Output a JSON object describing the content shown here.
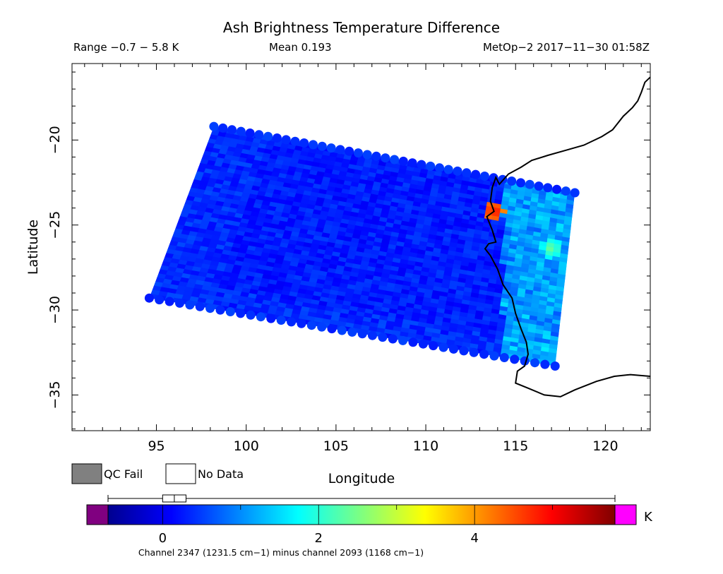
{
  "chart_data": {
    "type": "heatmap",
    "title": "Ash Brightness Temperature Difference",
    "subtitle_left": "Range −0.7 − 5.8 K",
    "subtitle_mid": "Mean 0.193",
    "subtitle_right": "MetOp−2 2017−11−30 01:58Z",
    "xlabel": "Longitude",
    "ylabel": "Latitude",
    "xlim": [
      90.3,
      122.5
    ],
    "ylim": [
      -37.1,
      -15.5
    ],
    "xticks": [
      95,
      100,
      105,
      110,
      115,
      120
    ],
    "xtick_labels": [
      "95",
      "100",
      "105",
      "110",
      "115",
      "120"
    ],
    "yticks": [
      -20,
      -25,
      -30,
      -35
    ],
    "ytick_labels": [
      "−20",
      "−25",
      "−30",
      "−35"
    ],
    "swath_corners": [
      [
        98.2,
        -19.2
      ],
      [
        118.3,
        -23.1
      ],
      [
        117.2,
        -33.3
      ],
      [
        94.6,
        -29.3
      ]
    ],
    "field_summary": {
      "range": [
        -0.7,
        5.8
      ],
      "mean": 0.193,
      "units": "K"
    },
    "hotspots": [
      {
        "lon": 113.8,
        "lat": -24.2,
        "value": 5.0
      },
      {
        "lon": 116.5,
        "lat": -24.6,
        "value": 1.8
      },
      {
        "lon": 117.0,
        "lat": -26.4,
        "value": 2.5
      }
    ],
    "grid": false
  },
  "colorbar": {
    "range": [
      -0.7,
      5.8
    ],
    "ticks": [
      0,
      2,
      4
    ],
    "tick_labels": [
      "0",
      "2",
      "4"
    ],
    "unit": "K",
    "box": {
      "q1": 0.0,
      "median": 0.15,
      "q3": 0.3,
      "min": -0.7,
      "max": 5.8
    },
    "caption": "Channel 2347 (1231.5 cm−1) minus channel 2093 (1168 cm−1)",
    "under_color": "#800080",
    "over_color": "#ff00ff"
  },
  "legend": {
    "qc_fail_label": "QC Fail",
    "qc_fail_color": "#808080",
    "no_data_label": "No Data"
  }
}
